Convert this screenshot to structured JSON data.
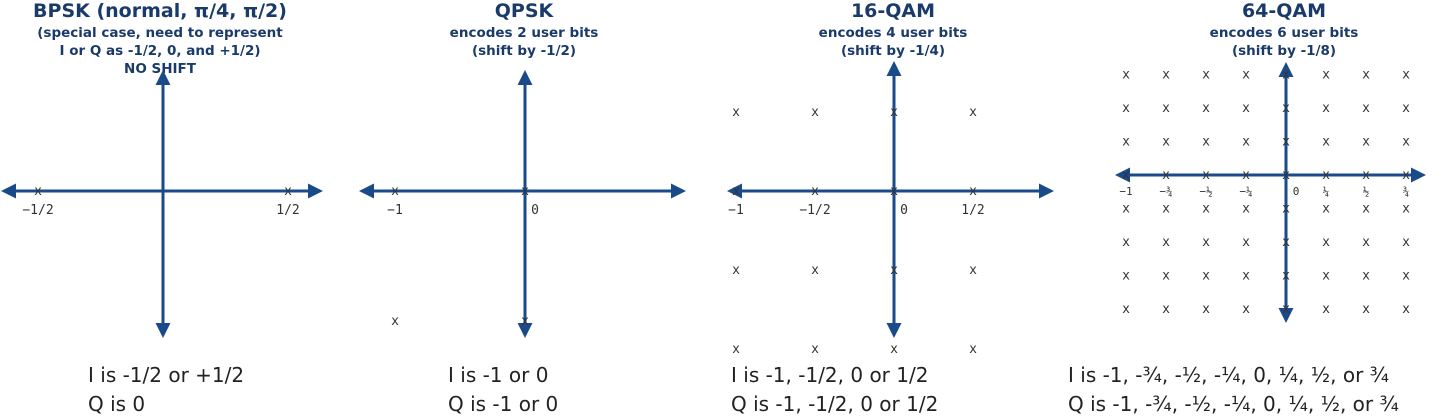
{
  "colors": {
    "axis": "#1a4a8a",
    "title": "#1a3a6a",
    "text": "#222222"
  },
  "point_marker": "x",
  "panels": [
    {
      "title": "BPSK (normal, π/4, π/2)",
      "subtitle": [
        "(special case, need to represent",
        "I or Q as -1/2, 0, and +1/2)",
        "NO SHIFT"
      ],
      "i_values": [
        -0.5,
        0.5
      ],
      "q_values": [
        0
      ],
      "tick_labels": [
        {
          "value": -0.5,
          "text": "−1/2"
        },
        {
          "value": 0.5,
          "text": "1/2"
        }
      ],
      "notes": [
        "I is -1/2 or +1/2",
        "Q is 0"
      ]
    },
    {
      "title": "QPSK",
      "subtitle": [
        "encodes 2 user bits",
        "(shift by -1/2)"
      ],
      "i_values": [
        -1,
        0
      ],
      "q_values": [
        -1,
        0
      ],
      "tick_labels": [
        {
          "value": -1,
          "text": "−1"
        },
        {
          "value": 0,
          "text": "0"
        }
      ],
      "notes": [
        "I is -1 or 0",
        "Q is -1 or 0"
      ]
    },
    {
      "title": "16-QAM",
      "subtitle": [
        "encodes 4 user bits",
        "(shift by -1/4)"
      ],
      "i_values": [
        -1,
        -0.5,
        0,
        0.5
      ],
      "q_values": [
        -1,
        -0.5,
        0,
        0.5
      ],
      "tick_labels": [
        {
          "value": -1,
          "text": "−1"
        },
        {
          "value": -0.5,
          "text": "−1/2"
        },
        {
          "value": 0,
          "text": "0"
        },
        {
          "value": 0.5,
          "text": "1/2"
        }
      ],
      "notes": [
        "I is -1, -1/2, 0 or 1/2",
        "Q is -1, -1/2, 0 or 1/2"
      ]
    },
    {
      "title": "64-QAM",
      "subtitle": [
        "encodes 6 user bits",
        "(shift by -1/8)"
      ],
      "i_values": [
        -1,
        -0.75,
        -0.5,
        -0.25,
        0,
        0.25,
        0.5,
        0.75
      ],
      "q_values": [
        -1,
        -0.75,
        -0.5,
        -0.25,
        0,
        0.25,
        0.5,
        0.75
      ],
      "tick_labels": [
        {
          "value": -1,
          "text": "−1"
        },
        {
          "value": -0.75,
          "text": "−¾"
        },
        {
          "value": -0.5,
          "text": "−½"
        },
        {
          "value": -0.25,
          "text": "−¼"
        },
        {
          "value": 0,
          "text": "0"
        },
        {
          "value": 0.25,
          "text": "¼"
        },
        {
          "value": 0.5,
          "text": "½"
        },
        {
          "value": 0.75,
          "text": "¾"
        }
      ],
      "notes": [
        "I is -1, -¾, -½, -¼, 0, ¼, ½, or ¾",
        "Q is -1, -¾, -½, -¼, 0, ¼, ½, or ¾"
      ]
    }
  ]
}
